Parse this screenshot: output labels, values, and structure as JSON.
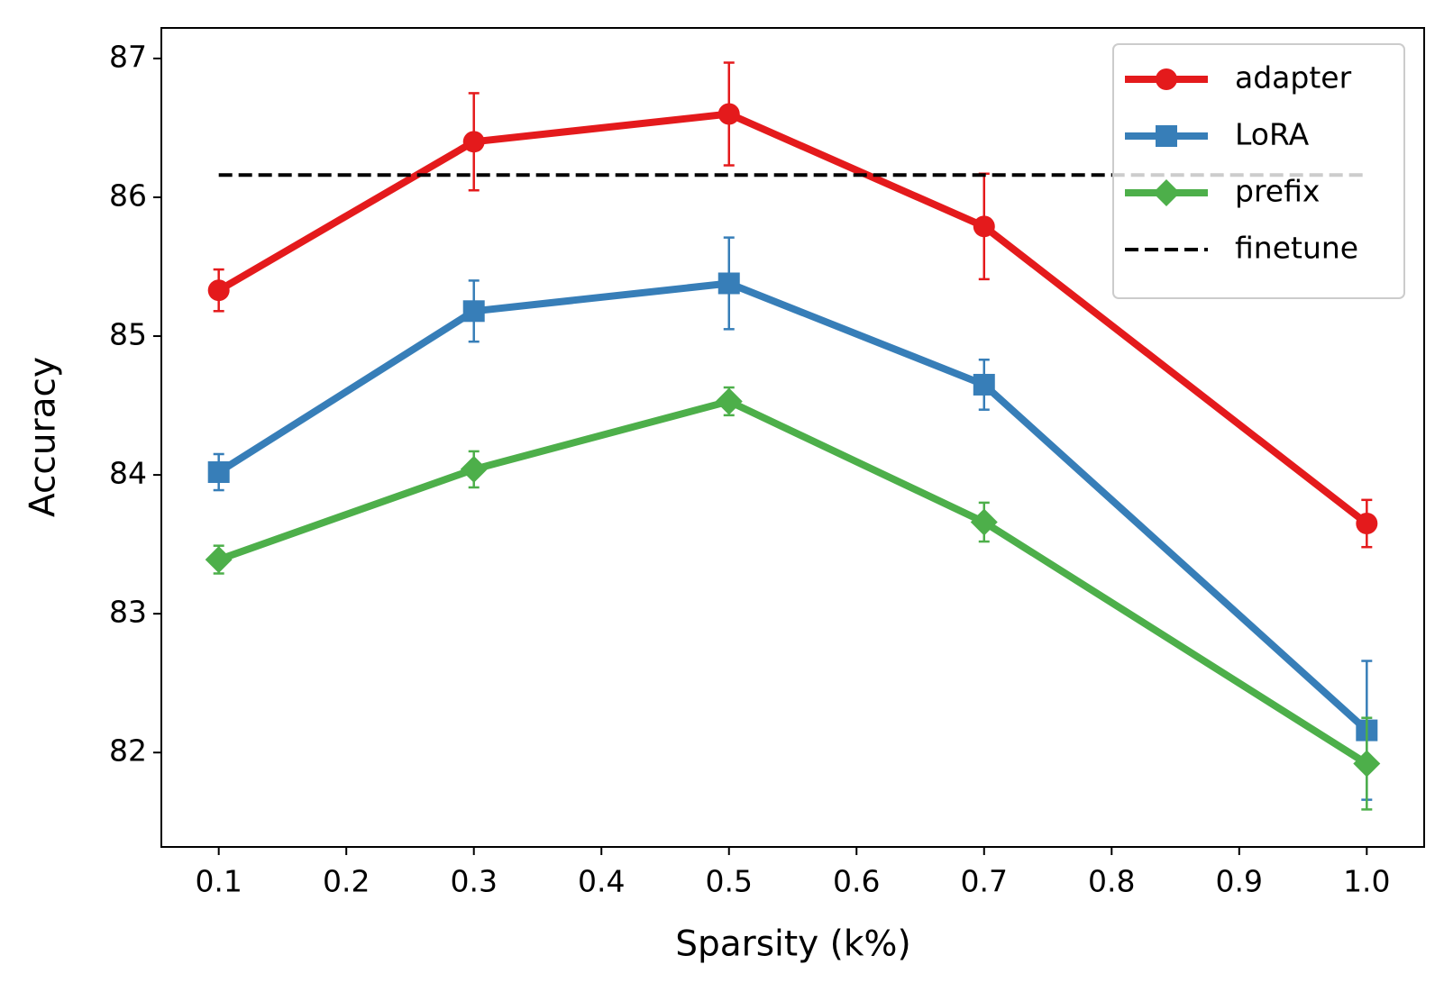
{
  "chart_data": {
    "type": "line",
    "x_label": "Sparsity (k%)",
    "y_label": "Accuracy",
    "x": [
      0.1,
      0.3,
      0.5,
      0.7,
      1.0
    ],
    "series": [
      {
        "name": "adapter",
        "color": "#e41a1c",
        "marker": "circle",
        "linestyle": "solid",
        "values": [
          85.33,
          86.4,
          86.6,
          85.79,
          83.65
        ],
        "errors": [
          0.15,
          0.35,
          0.37,
          0.38,
          0.17
        ]
      },
      {
        "name": "LoRA",
        "color": "#377eb8",
        "marker": "square",
        "linestyle": "solid",
        "values": [
          84.02,
          85.18,
          85.38,
          84.65,
          82.16
        ],
        "errors": [
          0.13,
          0.22,
          0.33,
          0.18,
          0.5
        ]
      },
      {
        "name": "prefix",
        "color": "#4daf4a",
        "marker": "diamond",
        "linestyle": "solid",
        "values": [
          83.39,
          84.04,
          84.53,
          83.66,
          81.92
        ],
        "errors": [
          0.1,
          0.13,
          0.1,
          0.14,
          0.33
        ]
      },
      {
        "name": "finetune",
        "color": "#000000",
        "marker": "none",
        "linestyle": "dashed",
        "values": [
          86.16,
          86.16,
          86.16,
          86.16,
          86.16
        ]
      }
    ],
    "xlim": [
      0.055,
      1.045
    ],
    "ylim": [
      81.32,
      87.22
    ],
    "xticks": [
      0.1,
      0.2,
      0.3,
      0.4,
      0.5,
      0.6,
      0.7,
      0.8,
      0.9,
      {
        "value": 1.0,
        "label": "1.0"
      }
    ],
    "yticks": [
      82,
      83,
      84,
      85,
      86,
      87
    ],
    "legend": "upper right",
    "grid": false
  }
}
